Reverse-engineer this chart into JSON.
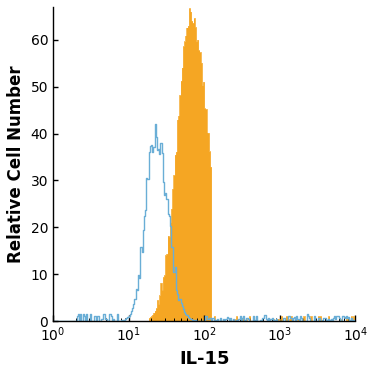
{
  "xlabel": "IL-15",
  "ylabel": "Relative Cell Number",
  "xlim_log": [
    0,
    4
  ],
  "ylim": [
    0,
    67
  ],
  "yticks": [
    0,
    10,
    20,
    30,
    40,
    50,
    60
  ],
  "background_color": "#ffffff",
  "blue_color": "#6aaed6",
  "orange_color": "#f5a623",
  "xlabel_fontsize": 13,
  "ylabel_fontsize": 12,
  "tick_fontsize": 10,
  "blue_peak_log": 1.35,
  "blue_peak_height": 40,
  "blue_std": 0.16,
  "orange_peak_log": 1.82,
  "orange_peak_height": 65,
  "orange_std": 0.18
}
